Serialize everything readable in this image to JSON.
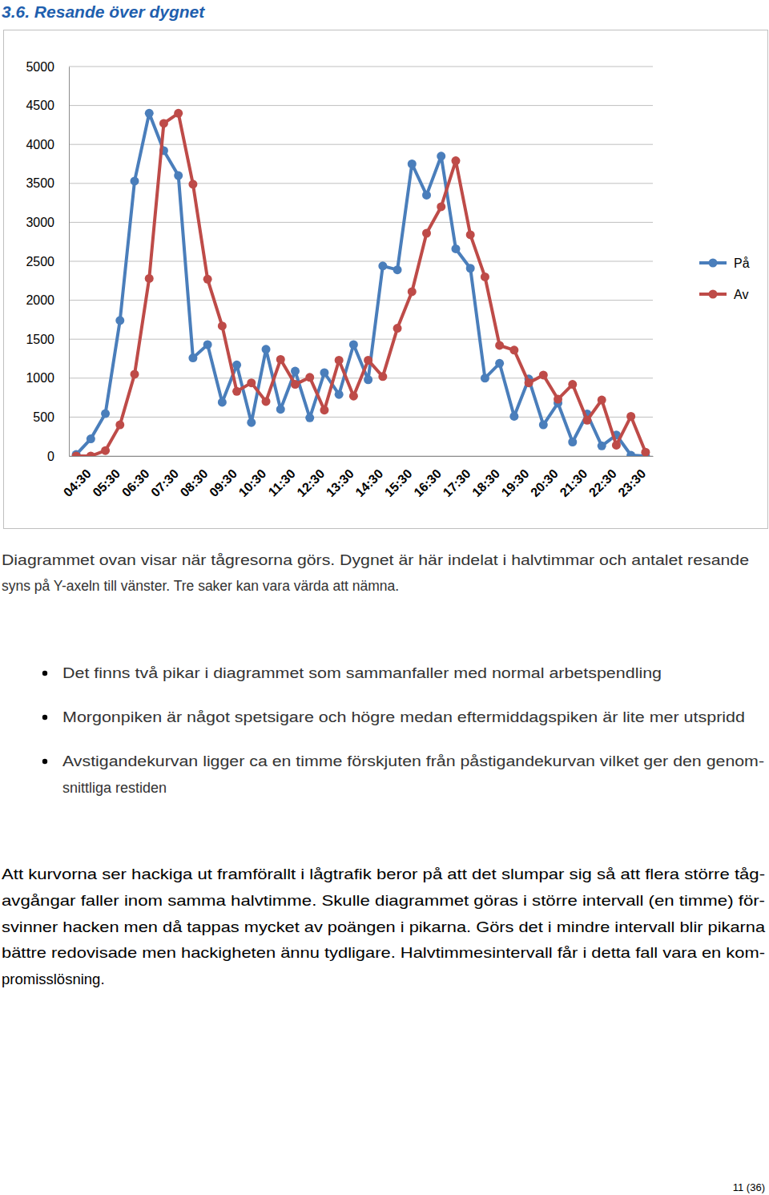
{
  "heading": "3.6. Resande över dygnet",
  "chart_data": {
    "type": "line",
    "categories": [
      "04:30",
      null,
      "05:30",
      null,
      "06:30",
      null,
      "07:30",
      null,
      "08:30",
      null,
      "09:30",
      null,
      "10:30",
      null,
      "11:30",
      null,
      "12:30",
      null,
      "13:30",
      null,
      "14:30",
      null,
      "15:30",
      null,
      "16:30",
      null,
      "17:30",
      null,
      "18:30",
      null,
      "19:30",
      null,
      "20:30",
      null,
      "21:30",
      null,
      "22:30",
      null,
      "23:30",
      null
    ],
    "series": [
      {
        "name": "På",
        "color": "#4a7ebb",
        "marker": "circle",
        "values": [
          20,
          220,
          545,
          1740,
          3530,
          4400,
          3920,
          3600,
          1260,
          1430,
          690,
          1170,
          430,
          1370,
          600,
          1090,
          490,
          1070,
          790,
          1430,
          980,
          2440,
          2390,
          3750,
          3350,
          3850,
          2660,
          2410,
          1000,
          1190,
          510,
          990,
          400,
          680,
          180,
          540,
          130,
          270,
          10,
          0
        ]
      },
      {
        "name": "Av",
        "color": "#be4b48",
        "marker": "circle",
        "values": [
          0,
          0,
          70,
          400,
          1050,
          2280,
          4270,
          4400,
          3490,
          2270,
          1670,
          830,
          940,
          700,
          1240,
          920,
          1010,
          590,
          1230,
          770,
          1230,
          1020,
          1640,
          2110,
          2860,
          3200,
          3790,
          2840,
          2300,
          1420,
          1360,
          940,
          1040,
          730,
          920,
          460,
          720,
          140,
          510,
          50
        ]
      }
    ],
    "ylim": [
      0,
      5000
    ],
    "yticks": [
      0,
      500,
      1000,
      1500,
      2000,
      2500,
      3000,
      3500,
      4000,
      4500,
      5000
    ],
    "grid": true,
    "legend": "right"
  },
  "caption": [
    "Diagrammet ovan visar när tågresorna görs. Dygnet är här indelat i halvtimmar och antalet resande",
    "syns på Y-axeln till vänster. Tre saker kan vara värda att nämna."
  ],
  "bullets": [
    [
      "Det finns två pikar i diagrammet som sammanfaller med normal arbetspendling"
    ],
    [
      "Morgonpiken är något spetsigare och högre medan eftermiddagspiken är lite mer utspridd"
    ],
    [
      "Avstigandekurvan ligger ca en timme förskjuten från påstigandekurvan vilket ger den genom-",
      "snittliga restiden"
    ]
  ],
  "paragraph": [
    "Att kurvorna ser hackiga ut framförallt i lågtrafik beror på att det slumpar sig så att flera större tåg-",
    "avgångar faller inom samma halvtimme. Skulle diagrammet göras i större intervall (en timme) för-",
    "svinner hacken men då tappas mycket av poängen i pikarna. Görs det i mindre intervall blir pikarna",
    "bättre redovisade men hackigheten ännu tydligare. Halvtimmesintervall får i detta fall vara en kom-",
    "promisslösning."
  ],
  "page_number": "11 (36)"
}
